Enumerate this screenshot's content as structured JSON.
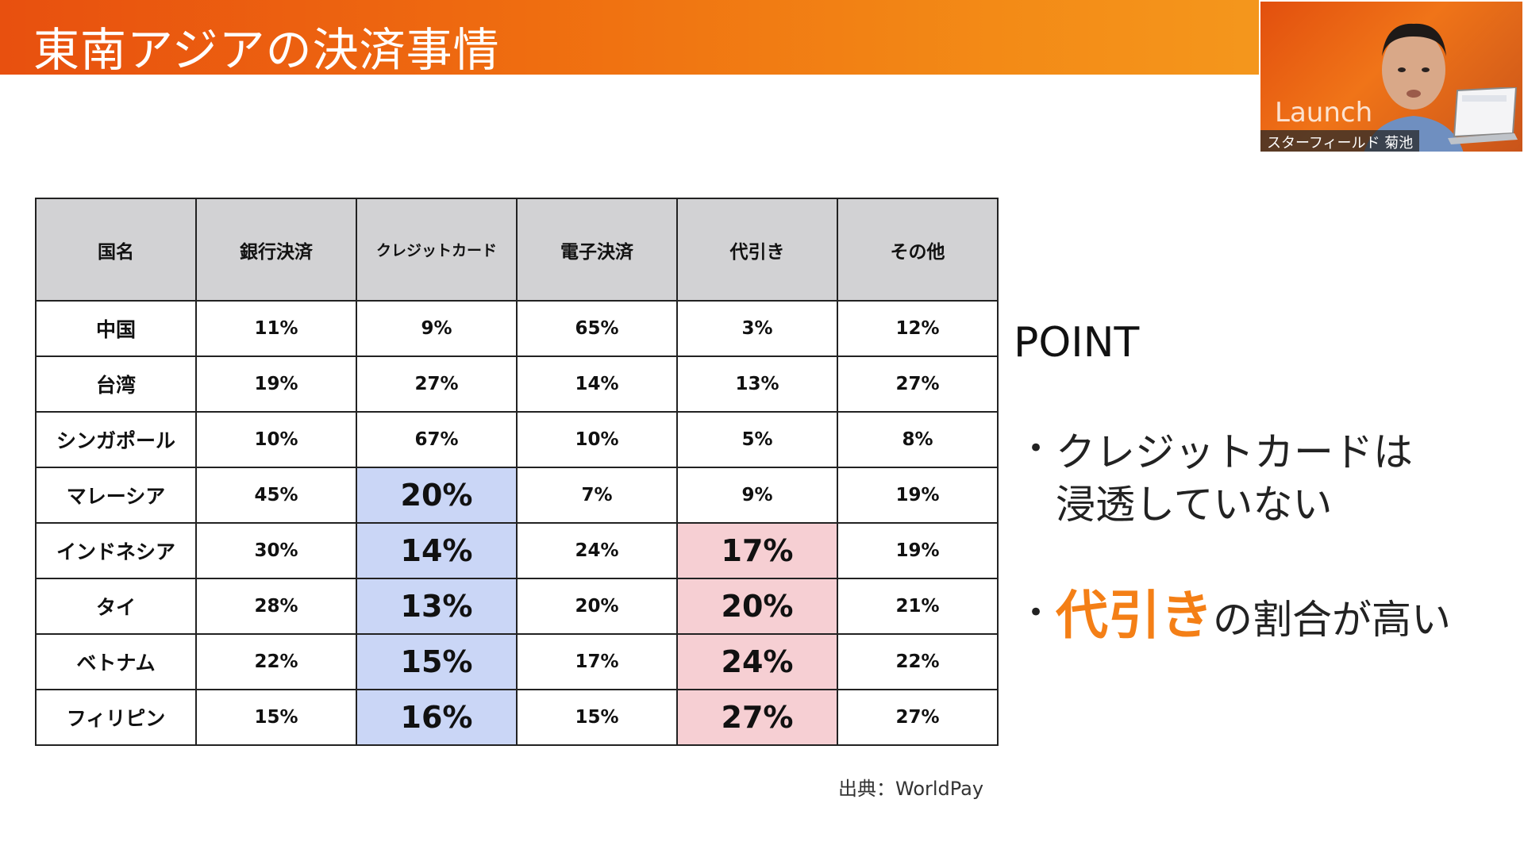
{
  "slide": {
    "title": "東南アジアの決済事情",
    "source": "出典：WorldPay"
  },
  "table": {
    "headers": [
      "国名",
      "銀行決済",
      "クレジットカード",
      "電子決済",
      "代引き",
      "その他"
    ],
    "rows": [
      [
        "中国",
        "11%",
        "9%",
        "65%",
        "3%",
        "12%"
      ],
      [
        "台湾",
        "19%",
        "27%",
        "14%",
        "13%",
        "27%"
      ],
      [
        "シンガポール",
        "10%",
        "67%",
        "10%",
        "5%",
        "8%"
      ],
      [
        "マレーシア",
        "45%",
        "20%",
        "7%",
        "9%",
        "19%"
      ],
      [
        "インドネシア",
        "30%",
        "14%",
        "24%",
        "17%",
        "19%"
      ],
      [
        "タイ",
        "28%",
        "13%",
        "20%",
        "20%",
        "21%"
      ],
      [
        "ベトナム",
        "22%",
        "15%",
        "17%",
        "24%",
        "22%"
      ],
      [
        "フィリピン",
        "15%",
        "16%",
        "15%",
        "27%",
        "27%"
      ]
    ]
  },
  "point": {
    "heading": "POINT",
    "bullet1_line1": "クレジットカードは",
    "bullet1_line2": "浸透していない",
    "bullet2_accent": "代引き",
    "bullet2_rest": "の割合が高い"
  },
  "webcam": {
    "logo": "Launch",
    "name": "スターフィールド 菊池"
  },
  "colors": {
    "accent": "#f47f16",
    "highlight_blue": "#cad6f6",
    "highlight_pink": "#f6cfd3",
    "header_gray": "#d2d2d4"
  }
}
